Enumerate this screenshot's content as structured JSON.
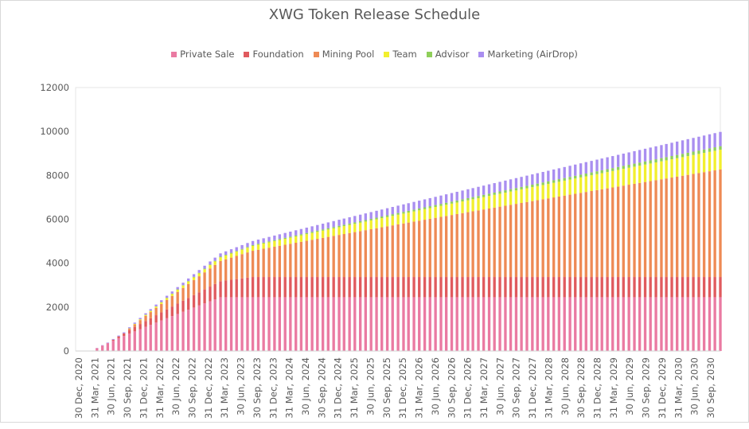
{
  "chart_data": {
    "type": "bar",
    "stacked": true,
    "title": "XWG Token Release Schedule",
    "xlabel": "",
    "ylabel": "",
    "ylim": [
      0,
      12000
    ],
    "yticks": [
      0,
      2000,
      4000,
      6000,
      8000,
      10000,
      12000
    ],
    "grid": false,
    "legend_position": "top",
    "x_start": "2020-12-30",
    "x_end": "2030-12-31",
    "x_tick_labels": [
      "30 Dec, 2020",
      "31 Mar, 2021",
      "30 Jun, 2021",
      "30 Sep, 2021",
      "31 Dec, 2021",
      "31 Mar, 2022",
      "30 Jun, 2022",
      "30 Sep, 2022",
      "31 Dec, 2022",
      "31 Mar, 2023",
      "30 Jun, 2023",
      "30 Sep, 2023",
      "31 Dec, 2023",
      "31 Mar, 2024",
      "30 Jun, 2024",
      "30 Sep, 2024",
      "31 Dec, 2024",
      "31 Mar, 2025",
      "30 Jun, 2025",
      "30 Sep, 2025",
      "31 Dec, 2025",
      "31 Mar, 2026",
      "30 Jun, 2026",
      "30 Sep, 2026",
      "31 Dec, 2026",
      "31 Mar, 2027",
      "30 Jun, 2027",
      "30 Sep, 2027",
      "31 Dec, 2027",
      "31 Mar, 2028",
      "30 Jun, 2028",
      "30 Sep, 2028",
      "31 Dec, 2028",
      "31 Mar, 2029",
      "30 Jun, 2029",
      "30 Sep, 2029",
      "31 Dec, 2029",
      "31 Mar, 2030",
      "30 Jun, 2030",
      "30 Sep, 2030"
    ],
    "series": [
      {
        "name": "Private Sale",
        "color": "#ea7aa2",
        "start": "2021-03-31",
        "end": "2023-03-31",
        "final": 2450
      },
      {
        "name": "Foundation",
        "color": "#e05a5e",
        "start": "2021-06-30",
        "end": "2023-09-30",
        "final": 920
      },
      {
        "name": "Mining Pool",
        "color": "#ee8a55",
        "start": "2021-09-30",
        "end": "2030-12-31",
        "final": 4900
      },
      {
        "name": "Team",
        "color": "#f2ef2e",
        "start": "2021-09-30",
        "end": "2030-12-31",
        "final": 900
      },
      {
        "name": "Advisor",
        "color": "#8fcf5a",
        "start": "2021-09-30",
        "end": "2030-12-31",
        "final": 160
      },
      {
        "name": "Marketing (AirDrop)",
        "color": "#a98ef0",
        "start": "2021-03-31",
        "end": "2030-12-31",
        "final": 650
      }
    ]
  }
}
